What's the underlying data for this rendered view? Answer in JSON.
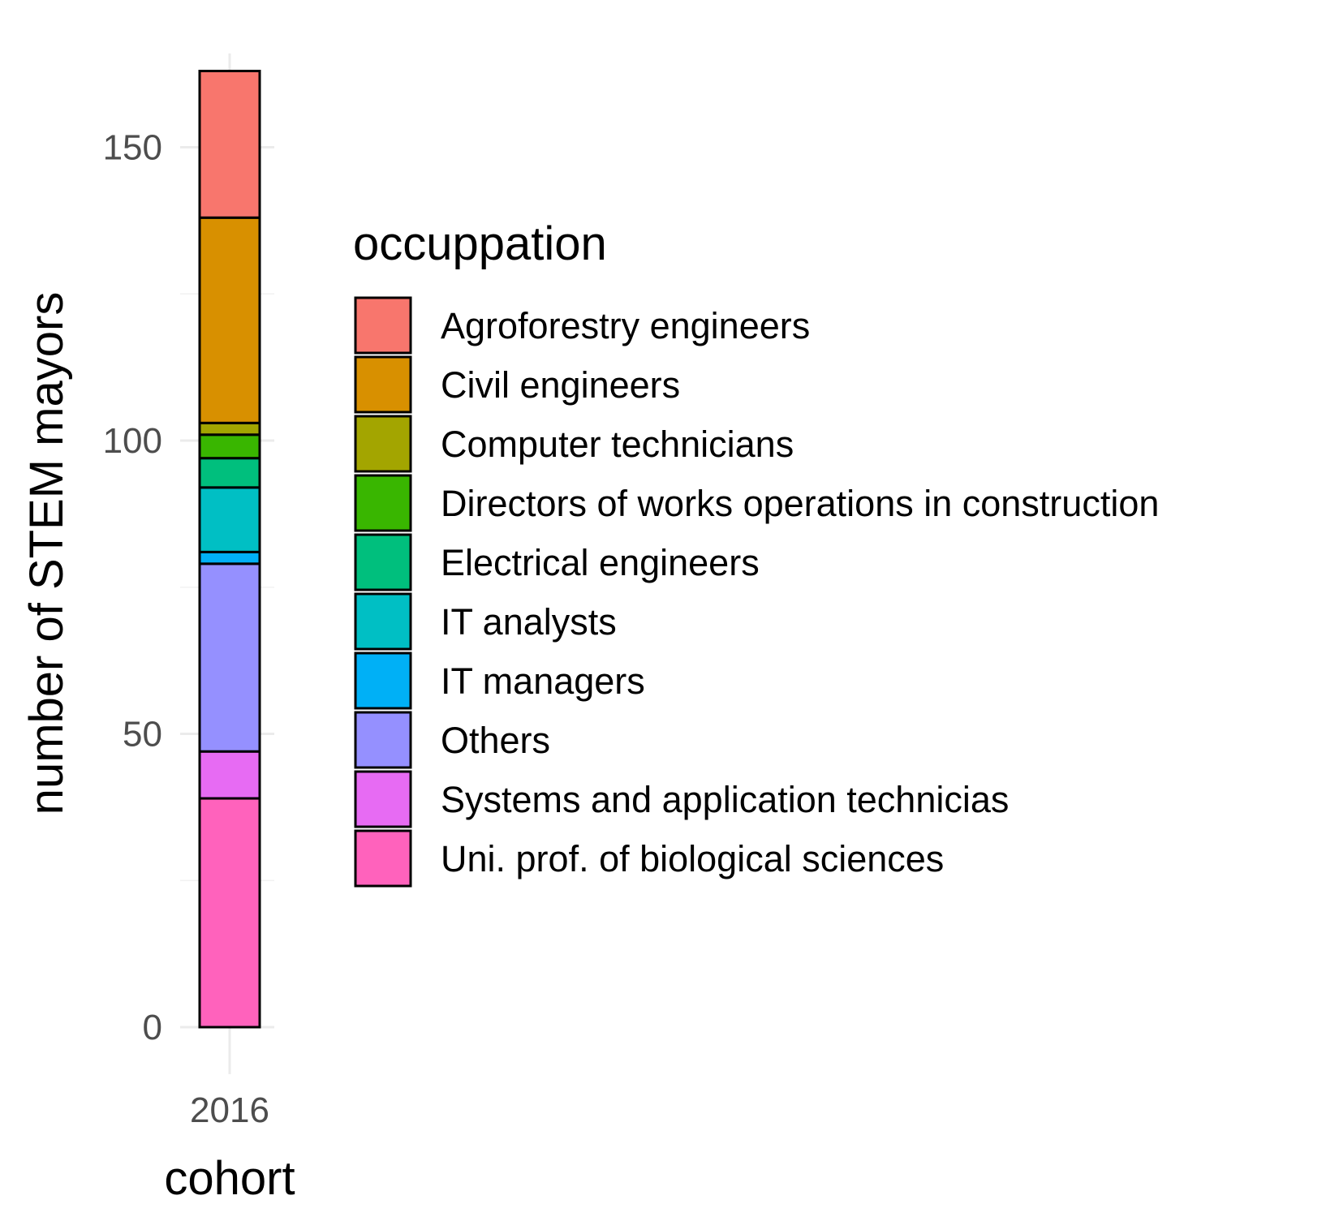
{
  "chart_data": {
    "type": "bar",
    "stacked": true,
    "categories": [
      "2016"
    ],
    "xlabel": "cohort",
    "ylabel": "number of STEM mayors",
    "ylim": [
      -8,
      166
    ],
    "yticks": [
      0,
      50,
      100,
      150
    ],
    "grid": true,
    "legend_position": "right",
    "legend_title": "occuppation",
    "series": [
      {
        "name": "Agroforestry engineers",
        "values": [
          25
        ],
        "color": "#F8766D"
      },
      {
        "name": "Civil engineers",
        "values": [
          35
        ],
        "color": "#D89000"
      },
      {
        "name": "Computer technicians",
        "values": [
          2
        ],
        "color": "#A3A500"
      },
      {
        "name": "Directors of works operations in construction",
        "values": [
          4
        ],
        "color": "#39B600"
      },
      {
        "name": "Electrical engineers",
        "values": [
          5
        ],
        "color": "#00BF7D"
      },
      {
        "name": "IT analysts",
        "values": [
          11
        ],
        "color": "#00BFC4"
      },
      {
        "name": "IT managers",
        "values": [
          2
        ],
        "color": "#00B0F6"
      },
      {
        "name": "Others",
        "values": [
          32
        ],
        "color": "#9590FF"
      },
      {
        "name": "Systems and application technicias",
        "values": [
          8
        ],
        "color": "#E76BF3"
      },
      {
        "name": "Uni. prof. of biological sciences",
        "values": [
          39
        ],
        "color": "#FF62BC"
      }
    ]
  }
}
